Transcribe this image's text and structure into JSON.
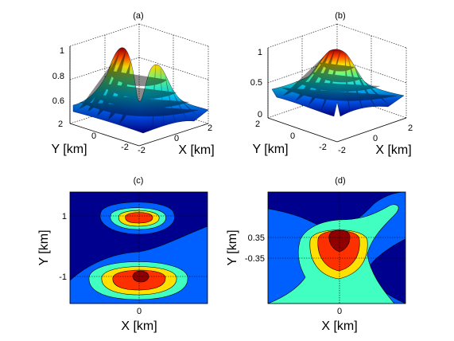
{
  "figure": {
    "panels": [
      {
        "id": "a",
        "label": "(a)"
      },
      {
        "id": "b",
        "label": "(b)"
      },
      {
        "id": "c",
        "label": "(c)"
      },
      {
        "id": "d",
        "label": "(d)"
      }
    ]
  },
  "chart_data": [
    {
      "panel": "(a)",
      "type": "surface3d",
      "xlabel": "X [km]",
      "ylabel": "Y [km]",
      "x_ticks": [
        "-2",
        "0",
        "2"
      ],
      "y_ticks": [
        "-2",
        "0",
        "2"
      ],
      "z_ticks": [
        "0.6",
        "0.8",
        "1"
      ],
      "xlim": [
        -2,
        2
      ],
      "ylim": [
        -2,
        2
      ],
      "zlim": [
        0.5,
        1
      ],
      "peaks": [
        {
          "x": -0.2,
          "y": -1,
          "z": 1.0
        },
        {
          "x": 0.3,
          "y": 1,
          "z": 0.92
        }
      ],
      "colormap": "jet",
      "grid": true
    },
    {
      "panel": "(b)",
      "type": "surface3d",
      "xlabel": "X [km]",
      "ylabel": "Y [km]",
      "x_ticks": [
        "-2",
        "0",
        "2"
      ],
      "y_ticks": [
        "-2",
        "0",
        "2"
      ],
      "z_ticks": [
        "0",
        "0.5",
        "1"
      ],
      "xlim": [
        -2,
        2
      ],
      "ylim": [
        -2,
        2
      ],
      "zlim": [
        0,
        1
      ],
      "peaks": [
        {
          "x": 0,
          "y": 0,
          "z": 1.0
        }
      ],
      "colormap": "jet",
      "grid": true
    },
    {
      "panel": "(c)",
      "type": "contour",
      "xlabel": "X [km]",
      "ylabel": "Y [km]",
      "x_ticks": [
        "0"
      ],
      "y_ticks": [
        "1",
        "-1"
      ],
      "x_tick_values": [
        0
      ],
      "y_tick_values": [
        1,
        -1
      ],
      "xlim": [
        -2,
        2
      ],
      "ylim": [
        -2,
        2
      ],
      "peaks": [
        {
          "x": 0,
          "y": 1
        },
        {
          "x": 0,
          "y": -1
        }
      ],
      "colormap": "jet",
      "grid": "dotted"
    },
    {
      "panel": "(d)",
      "type": "contour",
      "xlabel": "X [km]",
      "ylabel": "Y [km]",
      "x_ticks": [
        "0"
      ],
      "y_ticks": [
        "0.35",
        "-0.35"
      ],
      "x_tick_values": [
        0
      ],
      "y_tick_values": [
        0.35,
        -0.35
      ],
      "xlim": [
        -2,
        2
      ],
      "ylim": [
        -2,
        2
      ],
      "peaks": [
        {
          "x": 0,
          "y": 0.1
        }
      ],
      "colormap": "jet",
      "grid": "dotted"
    }
  ]
}
